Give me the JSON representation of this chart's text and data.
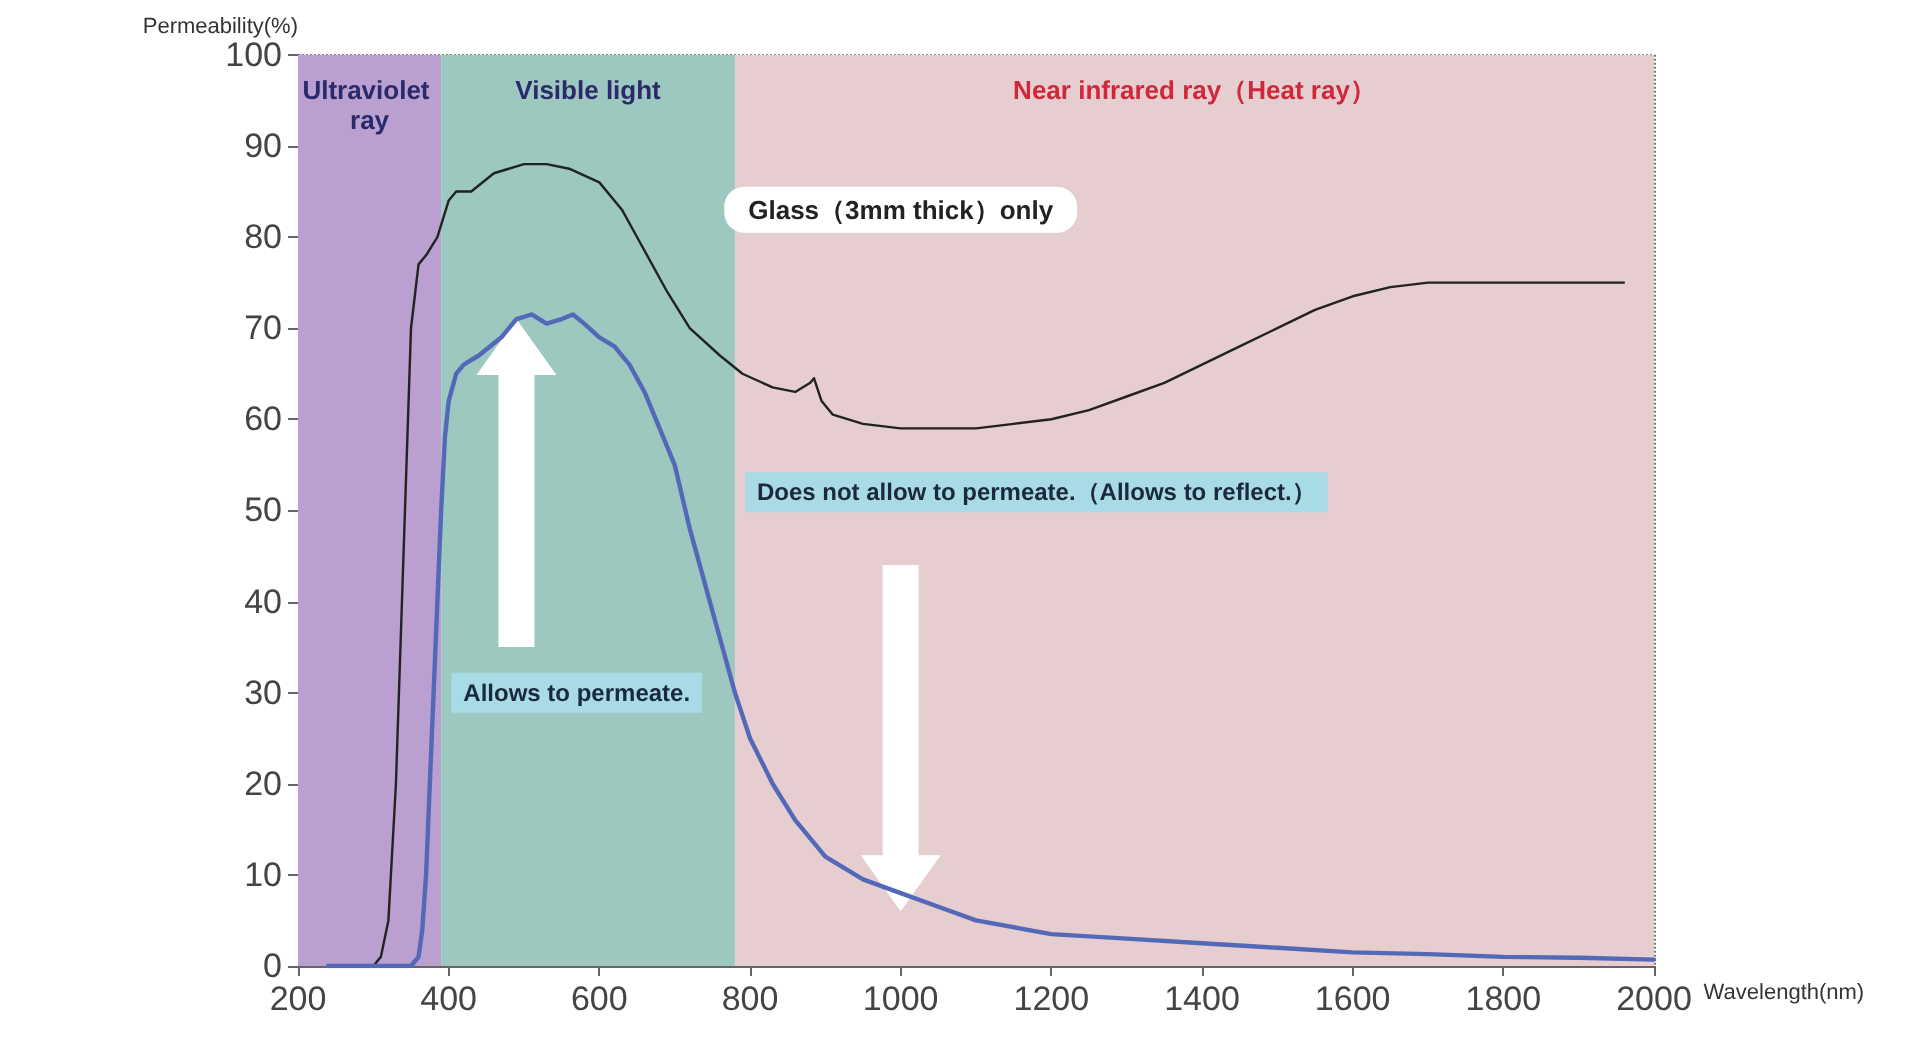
{
  "chart_data": {
    "type": "line",
    "xlabel": "Wavelength(nm)",
    "ylabel": "Permeability(%)",
    "xlim": [
      200,
      2000
    ],
    "xticks": [
      200,
      400,
      600,
      800,
      1000,
      1200,
      1400,
      1600,
      1800,
      2000
    ],
    "ylim": [
      0,
      100
    ],
    "yticks": [
      0,
      10,
      20,
      30,
      40,
      50,
      60,
      70,
      80,
      90,
      100
    ],
    "grid": true,
    "legend": false,
    "marker": "none",
    "line_style": "solid",
    "series": [
      {
        "name": "Glass（3mm thick）only",
        "color": "#222222",
        "x": [
          240,
          300,
          310,
          320,
          330,
          340,
          350,
          360,
          370,
          385,
          400,
          410,
          430,
          460,
          500,
          530,
          560,
          600,
          630,
          650,
          690,
          720,
          760,
          790,
          830,
          860,
          880,
          885,
          895,
          910,
          950,
          1000,
          1050,
          1100,
          1150,
          1200,
          1250,
          1300,
          1350,
          1400,
          1450,
          1500,
          1550,
          1600,
          1650,
          1700,
          1750,
          1800,
          1900,
          1960
        ],
        "values": [
          0,
          0,
          1,
          5,
          20,
          45,
          70,
          77,
          78,
          80,
          84,
          85,
          85,
          87,
          88,
          88,
          87.5,
          86,
          83,
          80,
          74,
          70,
          67,
          65,
          63.5,
          63,
          64,
          64.5,
          62,
          60.5,
          59.5,
          59,
          59,
          59,
          59.5,
          60,
          61,
          62.5,
          64,
          66,
          68,
          70,
          72,
          73.5,
          74.5,
          75,
          75,
          75,
          75,
          75
        ]
      },
      {
        "color": "#5468b8",
        "x": [
          240,
          350,
          360,
          365,
          370,
          375,
          380,
          385,
          390,
          395,
          400,
          410,
          420,
          440,
          470,
          490,
          510,
          530,
          550,
          565,
          580,
          600,
          620,
          640,
          660,
          680,
          700,
          720,
          740,
          760,
          780,
          800,
          830,
          860,
          900,
          950,
          1000,
          1050,
          1100,
          1200,
          1300,
          1400,
          1500,
          1600,
          1700,
          1800,
          1900,
          2000
        ],
        "values": [
          0,
          0,
          1,
          4,
          10,
          20,
          30,
          40,
          50,
          58,
          62,
          65,
          66,
          67,
          69,
          71,
          71.5,
          70.5,
          71,
          71.5,
          70.5,
          69,
          68,
          66,
          63,
          59,
          55,
          48,
          42,
          36,
          30,
          25,
          20,
          16,
          12,
          9.5,
          8,
          6.5,
          5,
          3.5,
          3,
          2.5,
          2,
          1.5,
          1.3,
          1,
          0.9,
          0.7
        ]
      }
    ],
    "bands": [
      {
        "axis": "x",
        "from": 200,
        "to": 390,
        "label": "Ultraviolet ray",
        "color": "#b9a0d0"
      },
      {
        "axis": "x",
        "from": 390,
        "to": 780,
        "label": "Visible light",
        "color": "#9cc8c0"
      },
      {
        "axis": "x",
        "from": 780,
        "to": 2000,
        "label": "Near infrared ray（Heat ray）",
        "color": "#e6cdd0"
      }
    ],
    "annotations": [
      "Allows to permeate.",
      "Does not allow to permeate.（Allows to reflect.）"
    ]
  }
}
